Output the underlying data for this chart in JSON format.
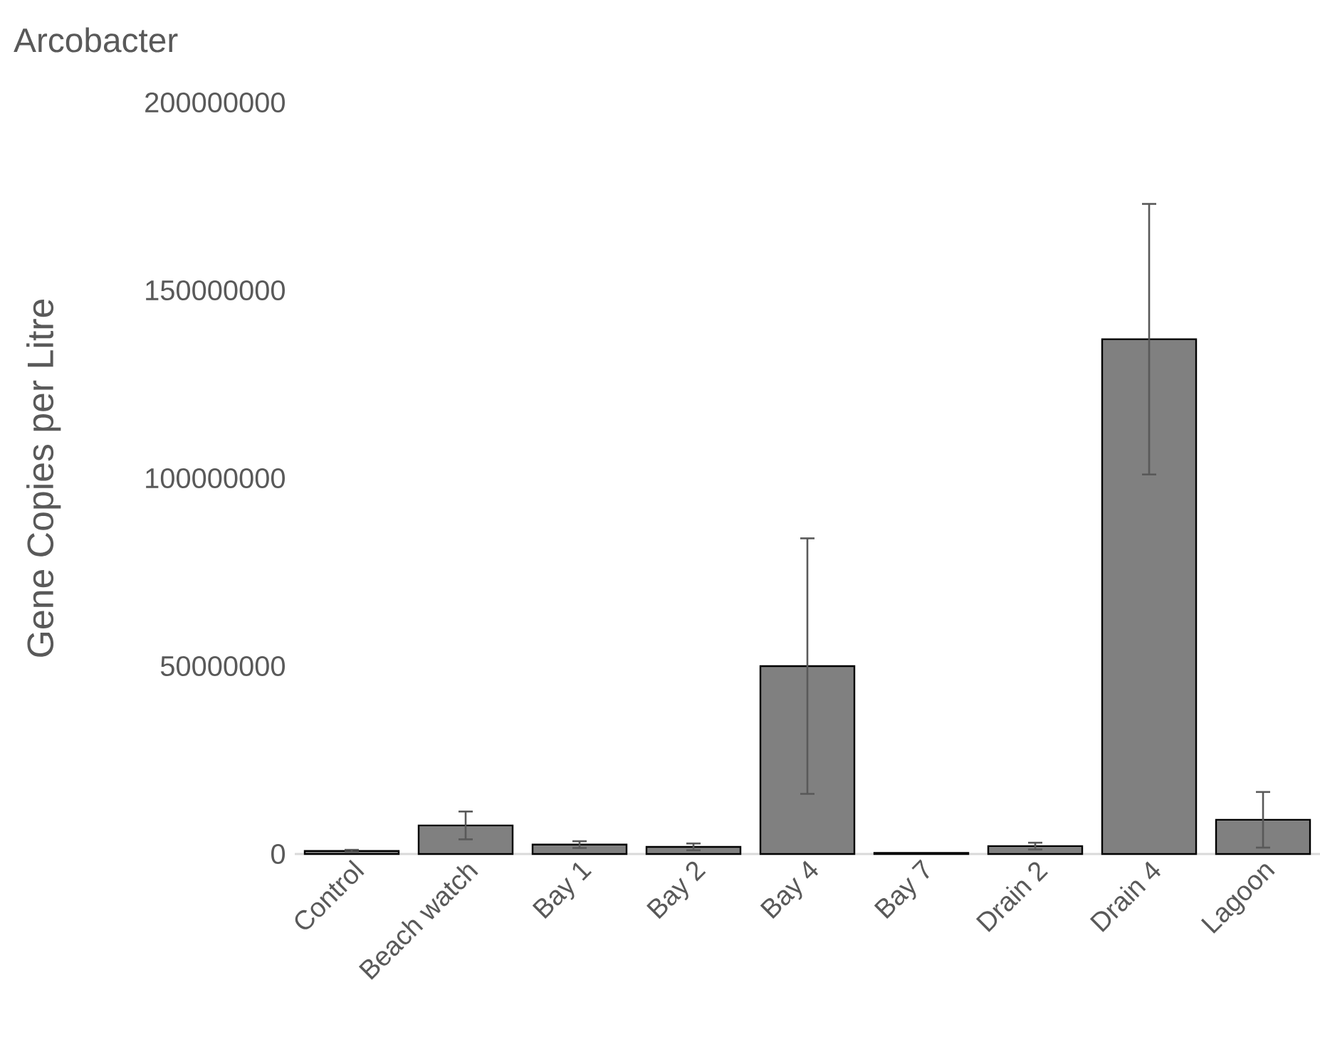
{
  "chart_data": {
    "type": "bar",
    "title": "Arcobacter",
    "ylabel": "Gene Copies per Litre",
    "categories": [
      "Control",
      "Beach watch",
      "Bay 1",
      "Bay 2",
      "Bay 4",
      "Bay 7",
      "Drain 2",
      "Drain 4",
      "Lagoon"
    ],
    "values": [
      800000,
      7600000,
      2500000,
      1900000,
      50000000,
      300000,
      2100000,
      137000000,
      9100000
    ],
    "errors": [
      300000,
      3700000,
      900000,
      900000,
      34000000,
      null,
      900000,
      36000000,
      7400000
    ],
    "color": "#808080",
    "ylim": [
      0,
      200000000
    ],
    "yticks": [
      0,
      50000000,
      100000000,
      150000000,
      200000000
    ]
  }
}
